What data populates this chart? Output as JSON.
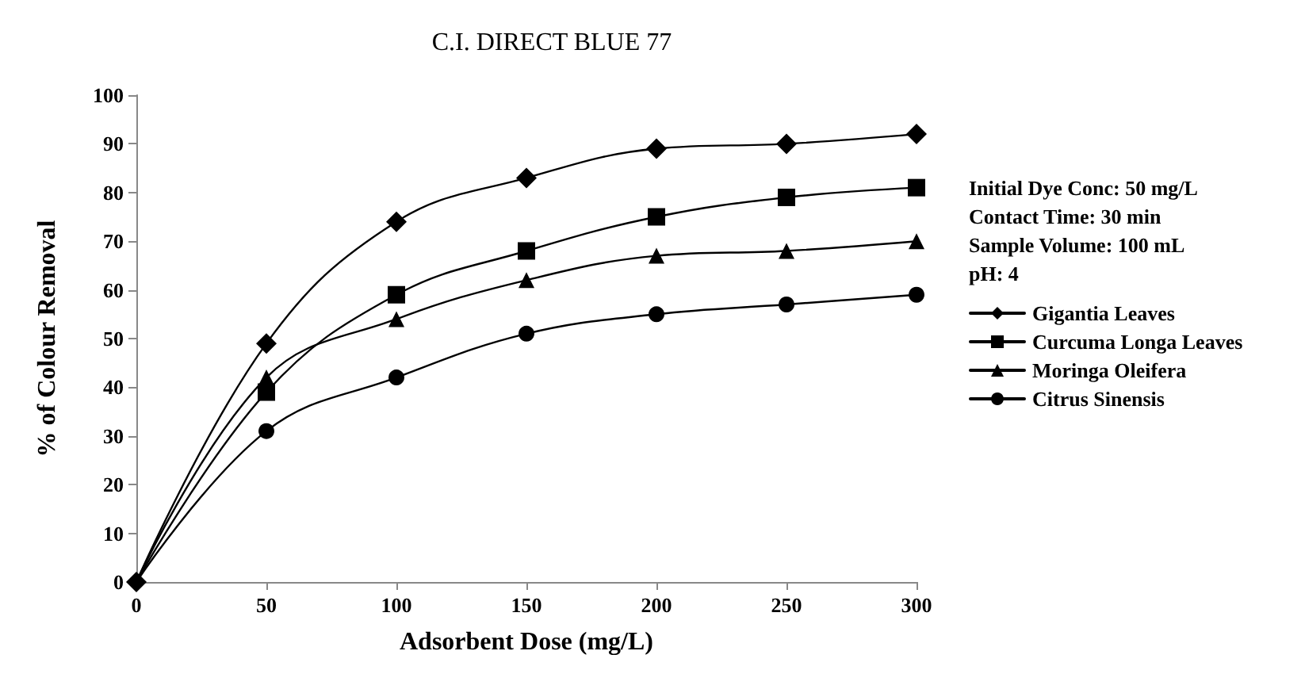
{
  "chart_data": {
    "type": "line",
    "title": "C.I. DIRECT BLUE 77",
    "xlabel": "Adsorbent Dose (mg/L)",
    "ylabel": "% of Colour Removal",
    "x": [
      0,
      50,
      100,
      150,
      200,
      250,
      300
    ],
    "series": [
      {
        "name": "Gigantia Leaves",
        "color": "#000000",
        "marker": "diamond",
        "values": [
          0,
          49,
          74,
          83,
          89,
          90,
          92
        ]
      },
      {
        "name": "Curcuma Longa Leaves",
        "color": "#000000",
        "marker": "square",
        "values": [
          0,
          39,
          59,
          68,
          75,
          79,
          81
        ]
      },
      {
        "name": "Moringa Oleifera",
        "color": "#000000",
        "marker": "triangle",
        "values": [
          0,
          42,
          54,
          62,
          67,
          68,
          70
        ]
      },
      {
        "name": "Citrus Sinensis",
        "color": "#000000",
        "marker": "circle",
        "values": [
          0,
          31,
          42,
          51,
          55,
          57,
          59
        ]
      }
    ],
    "xlim": [
      0,
      300
    ],
    "xticks": [
      0,
      50,
      100,
      150,
      200,
      250,
      300
    ],
    "ylim": [
      0,
      100
    ],
    "yticks": [
      0,
      10,
      20,
      30,
      40,
      50,
      60,
      70,
      80,
      90,
      100
    ],
    "annotations": [
      "Initial Dye Conc: 50 mg/L",
      "Contact Time: 30 min",
      "Sample Volume: 100 mL",
      "pH: 4"
    ],
    "grid": false,
    "legend": "right",
    "line_style": "solid"
  }
}
